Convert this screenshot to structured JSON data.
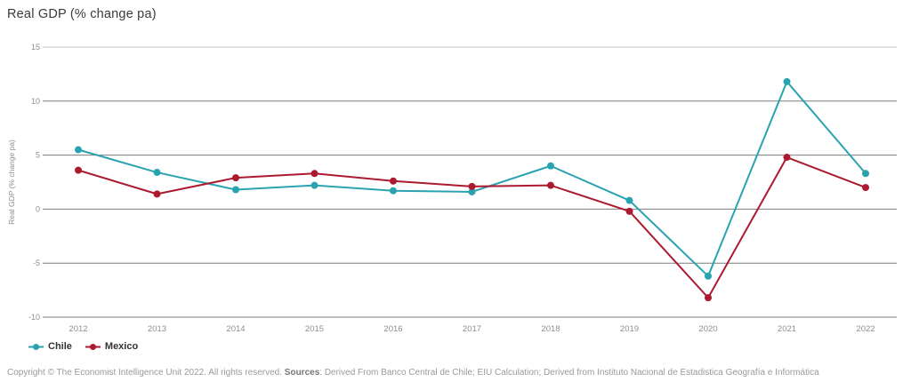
{
  "title": "Real GDP (% change pa)",
  "chart_data": {
    "type": "line",
    "title": "Real GDP (% change pa)",
    "ylabel": "Real GDP (% change pa)",
    "xlabel": "",
    "ylim": [
      -10,
      15
    ],
    "yticks": [
      15,
      10,
      5,
      0,
      -5,
      -10
    ],
    "grid": true,
    "legend_position": "bottom-left",
    "categories": [
      "2012",
      "2013",
      "2014",
      "2015",
      "2016",
      "2017",
      "2018",
      "2019",
      "2020",
      "2021",
      "2022"
    ],
    "series": [
      {
        "name": "Chile",
        "color": "#2aa3b1",
        "values": [
          5.5,
          3.4,
          1.8,
          2.2,
          1.7,
          1.6,
          4.0,
          0.8,
          -6.2,
          11.8,
          3.3
        ]
      },
      {
        "name": "Mexico",
        "color": "#ac1a30",
        "values": [
          3.6,
          1.4,
          2.9,
          3.3,
          2.6,
          2.1,
          2.2,
          -0.2,
          -8.2,
          4.8,
          2.0
        ]
      }
    ],
    "grid_color": "#7c7c7c",
    "top_border_color": "#c4c4c4",
    "axis_text_color": "#8e8e8e"
  },
  "footer": {
    "copyright_text": "Copyright © The Economist Intelligence Unit 2022. All rights reserved. ",
    "sources_label": "Sources",
    "sources_text": ": Derived From Banco Central de Chile; EIU Calculation; Derived from Instituto Nacional de Estadistica Geografía e Informática"
  }
}
